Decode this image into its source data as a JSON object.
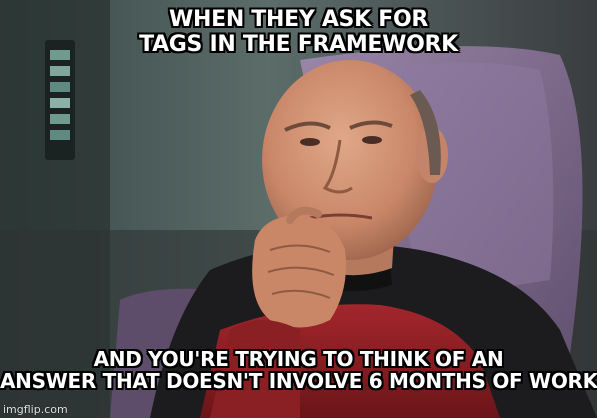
{
  "meme": {
    "top_text": [
      "WHEN THEY ASK FOR",
      "TAGS IN THE FRAMEWORK"
    ],
    "bottom_text": [
      "AND YOU'RE TRYING TO THINK OF AN",
      "ANSWER THAT DOESN'T INVOLVE 6 MONTHS OF WORK"
    ],
    "watermark": "imgflip.com"
  },
  "colors": {
    "caption": "#ffffff",
    "caption_outline": "#000000",
    "chair": "#7f6b8c",
    "uniform_red": "#8a1f24",
    "uniform_black": "#1a1a1a",
    "background": "#4b5a57"
  }
}
